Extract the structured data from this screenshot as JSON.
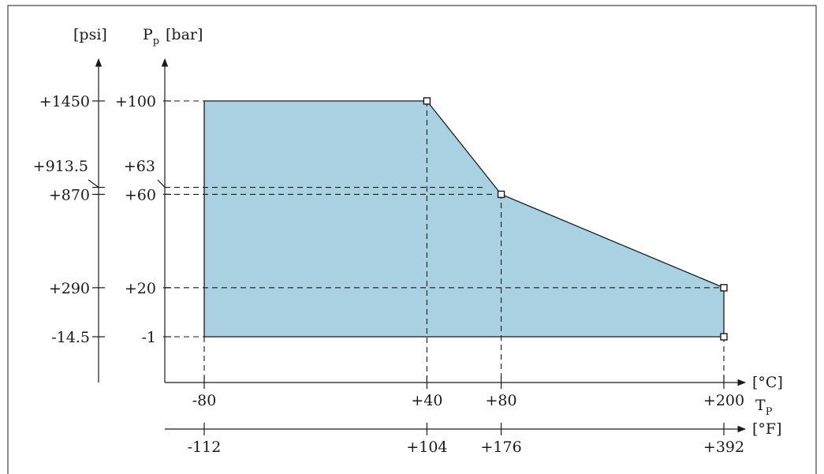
{
  "chart_data": {
    "type": "area",
    "title": "",
    "fill_color": "#a9d1e2",
    "line_color": "#1a1a1a",
    "grid": false,
    "y_axis": {
      "unit_psi": "[psi]",
      "symbol_main": "P",
      "symbol_sub": "p",
      "unit_bar": "[bar]",
      "ylim_bar": [
        -1,
        100
      ],
      "ticks": [
        {
          "bar": 100,
          "bar_label": "+100",
          "psi_label": "+1450"
        },
        {
          "bar": 60,
          "bar_label": "+60",
          "psi_label": "+870"
        },
        {
          "bar": 20,
          "bar_label": "+20",
          "psi_label": "+290"
        },
        {
          "bar": -1,
          "bar_label": "-1",
          "psi_label": "-14.5"
        }
      ],
      "extra_tick": {
        "bar": 63,
        "bar_label": "+63",
        "psi_label": "+913.5"
      }
    },
    "x_axis": {
      "unit_c": "[°C]",
      "unit_f": "[°F]",
      "symbol_main": "T",
      "symbol_sub": "P",
      "xlim_c": [
        -80,
        200
      ],
      "ticks": [
        {
          "c": -80,
          "c_label": "-80",
          "f_label": "-112"
        },
        {
          "c": 40,
          "c_label": "+40",
          "f_label": "+104"
        },
        {
          "c": 80,
          "c_label": "+80",
          "f_label": "+176"
        },
        {
          "c": 200,
          "c_label": "+200",
          "f_label": "+392"
        }
      ]
    },
    "series": [
      {
        "points": [
          {
            "x": -80,
            "y": -1
          },
          {
            "x": -80,
            "y": 100
          },
          {
            "x": 40,
            "y": 100
          },
          {
            "x": 80,
            "y": 60
          },
          {
            "x": 200,
            "y": 20
          },
          {
            "x": 200,
            "y": -1
          }
        ],
        "markers": [
          {
            "x": 40,
            "y": 100
          },
          {
            "x": 80,
            "y": 60
          },
          {
            "x": 200,
            "y": 20
          },
          {
            "x": 200,
            "y": -1
          }
        ]
      }
    ]
  }
}
